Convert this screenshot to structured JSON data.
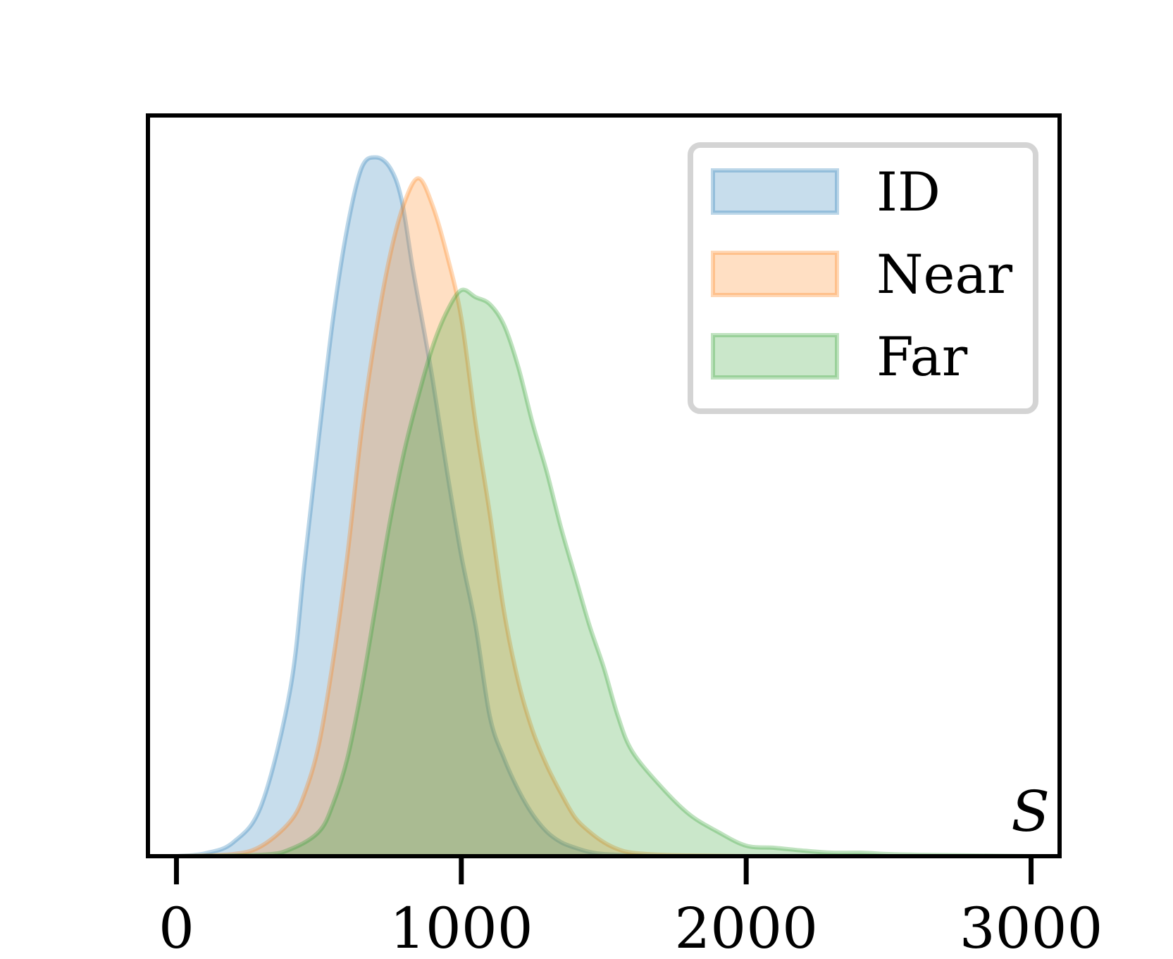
{
  "chart_data": {
    "type": "area",
    "title": "",
    "xlabel": "S",
    "ylabel": "",
    "xlim": [
      -100,
      3100
    ],
    "ylim": [
      0,
      1.06
    ],
    "xticks": [
      0,
      1000,
      2000,
      3000
    ],
    "xtick_labels": [
      "0",
      "1000",
      "2000",
      "3000"
    ],
    "yticks_visible": false,
    "grid": false,
    "legend_position": "top-right",
    "series": [
      {
        "name": "ID",
        "color": "#1f77b4",
        "x": [
          0,
          100,
          200,
          300,
          400,
          450,
          500,
          550,
          600,
          650,
          700,
          750,
          790,
          830,
          870,
          900,
          950,
          1000,
          1050,
          1100,
          1150,
          1200,
          1250,
          1300,
          1350,
          1400,
          1450,
          1500,
          1600,
          1700,
          1800
        ],
        "y": [
          0.0,
          0.004,
          0.02,
          0.075,
          0.24,
          0.42,
          0.6,
          0.77,
          0.9,
          0.985,
          1.0,
          0.985,
          0.94,
          0.84,
          0.75,
          0.68,
          0.55,
          0.43,
          0.33,
          0.2,
          0.14,
          0.095,
          0.06,
          0.035,
          0.02,
          0.012,
          0.006,
          0.003,
          0.001,
          0.0,
          0.0
        ]
      },
      {
        "name": "Near",
        "color": "#ff7f0e",
        "x": [
          0,
          200,
          300,
          400,
          450,
          500,
          550,
          600,
          650,
          700,
          750,
          800,
          850,
          900,
          950,
          1000,
          1050,
          1100,
          1150,
          1200,
          1250,
          1300,
          1350,
          1400,
          1450,
          1500,
          1550,
          1600,
          1700,
          1800,
          2000
        ],
        "y": [
          0.0,
          0.003,
          0.015,
          0.05,
          0.09,
          0.16,
          0.28,
          0.43,
          0.61,
          0.75,
          0.86,
          0.935,
          0.97,
          0.93,
          0.86,
          0.77,
          0.62,
          0.49,
          0.35,
          0.25,
          0.18,
          0.13,
          0.09,
          0.055,
          0.035,
          0.02,
          0.01,
          0.005,
          0.002,
          0.001,
          0.0
        ]
      },
      {
        "name": "Far",
        "color": "#2ca02c",
        "x": [
          0,
          300,
          400,
          500,
          550,
          600,
          650,
          700,
          750,
          800,
          850,
          900,
          950,
          1000,
          1050,
          1100,
          1150,
          1200,
          1250,
          1300,
          1350,
          1400,
          1450,
          1500,
          1550,
          1600,
          1700,
          1800,
          1900,
          2000,
          2100,
          2200,
          2300,
          2400,
          2500,
          2600,
          2800,
          3000
        ],
        "y": [
          0.0,
          0.002,
          0.01,
          0.035,
          0.075,
          0.14,
          0.24,
          0.36,
          0.48,
          0.58,
          0.66,
          0.73,
          0.78,
          0.81,
          0.8,
          0.79,
          0.76,
          0.7,
          0.62,
          0.55,
          0.47,
          0.4,
          0.33,
          0.27,
          0.2,
          0.15,
          0.1,
          0.06,
          0.035,
          0.015,
          0.012,
          0.008,
          0.005,
          0.005,
          0.003,
          0.002,
          0.001,
          0.0
        ]
      }
    ]
  }
}
